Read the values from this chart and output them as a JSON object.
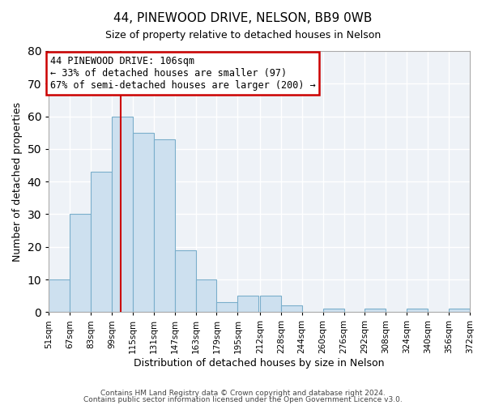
{
  "title": "44, PINEWOOD DRIVE, NELSON, BB9 0WB",
  "subtitle": "Size of property relative to detached houses in Nelson",
  "xlabel": "Distribution of detached houses by size in Nelson",
  "ylabel": "Number of detached properties",
  "bar_color": "#cde0ef",
  "bar_edge_color": "#7aaecb",
  "background_color": "#eef2f7",
  "bins": [
    51,
    67,
    83,
    99,
    115,
    131,
    147,
    163,
    179,
    195,
    212,
    228,
    244,
    260,
    276,
    292,
    308,
    324,
    340,
    356,
    372
  ],
  "counts": [
    10,
    30,
    43,
    60,
    55,
    53,
    19,
    10,
    3,
    5,
    5,
    2,
    0,
    1,
    0,
    1,
    0,
    1,
    0,
    1
  ],
  "tick_labels": [
    "51sqm",
    "67sqm",
    "83sqm",
    "99sqm",
    "115sqm",
    "131sqm",
    "147sqm",
    "163sqm",
    "179sqm",
    "195sqm",
    "212sqm",
    "228sqm",
    "244sqm",
    "260sqm",
    "276sqm",
    "292sqm",
    "308sqm",
    "324sqm",
    "340sqm",
    "356sqm",
    "372sqm"
  ],
  "ylim": [
    0,
    80
  ],
  "yticks": [
    0,
    10,
    20,
    30,
    40,
    50,
    60,
    70,
    80
  ],
  "vline_x": 106,
  "vline_color": "#cc0000",
  "annotation_text_line1": "44 PINEWOOD DRIVE: 106sqm",
  "annotation_text_line2": "← 33% of detached houses are smaller (97)",
  "annotation_text_line3": "67% of semi-detached houses are larger (200) →",
  "footer_line1": "Contains HM Land Registry data © Crown copyright and database right 2024.",
  "footer_line2": "Contains public sector information licensed under the Open Government Licence v3.0."
}
